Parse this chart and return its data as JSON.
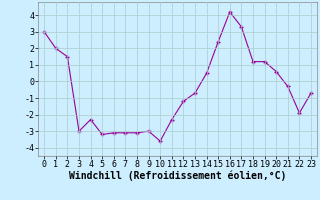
{
  "x": [
    0,
    1,
    2,
    3,
    4,
    5,
    6,
    7,
    8,
    9,
    10,
    11,
    12,
    13,
    14,
    15,
    16,
    17,
    18,
    19,
    20,
    21,
    22,
    23
  ],
  "y": [
    3.0,
    2.0,
    1.5,
    -3.0,
    -2.3,
    -3.2,
    -3.1,
    -3.1,
    -3.1,
    -3.0,
    -3.6,
    -2.3,
    -1.2,
    -0.7,
    0.5,
    2.4,
    4.2,
    3.3,
    1.2,
    1.2,
    0.6,
    -0.3,
    -1.9,
    -0.7
  ],
  "line_color": "#990099",
  "marker": "+",
  "marker_size": 3,
  "marker_lw": 1.0,
  "xlabel": "Windchill (Refroidissement éolien,°C)",
  "xlim": [
    -0.5,
    23.5
  ],
  "ylim": [
    -4.5,
    4.8
  ],
  "yticks": [
    -4,
    -3,
    -2,
    -1,
    0,
    1,
    2,
    3,
    4
  ],
  "xticks": [
    0,
    1,
    2,
    3,
    4,
    5,
    6,
    7,
    8,
    9,
    10,
    11,
    12,
    13,
    14,
    15,
    16,
    17,
    18,
    19,
    20,
    21,
    22,
    23
  ],
  "bg_color": "#cceeff",
  "grid_color": "#aacccc",
  "tick_fontsize": 6,
  "xlabel_fontsize": 7,
  "line_width": 0.8
}
